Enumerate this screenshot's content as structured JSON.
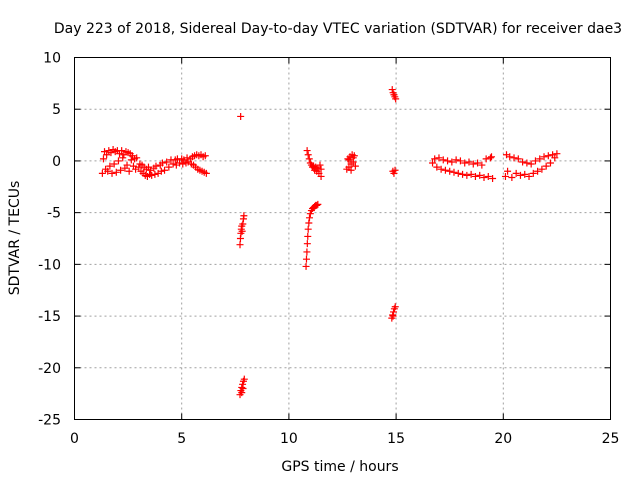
{
  "chart_data": {
    "type": "scatter",
    "title": "Day 223 of 2018, Sidereal Day-to-day VTEC variation (SDTVAR) for receiver dae3",
    "xlabel": "GPS time / hours",
    "ylabel": "SDTVAR / TECUs",
    "xlim": [
      0,
      25
    ],
    "ylim": [
      -25,
      10
    ],
    "xticks": [
      0,
      5,
      10,
      15,
      20,
      25
    ],
    "yticks": [
      10,
      5,
      0,
      -5,
      -10,
      -15,
      -20,
      -25
    ],
    "grid": true,
    "marker": "+",
    "color": "#ff0000",
    "series": [
      {
        "values": [
          [
            1.3,
            -1.2
          ],
          [
            1.35,
            0.2
          ],
          [
            1.4,
            0.9
          ],
          [
            1.45,
            -0.8
          ],
          [
            1.5,
            0.6
          ],
          [
            1.55,
            -1.0
          ],
          [
            1.6,
            1.0
          ],
          [
            1.65,
            -0.5
          ],
          [
            1.7,
            0.8
          ],
          [
            1.75,
            -1.2
          ],
          [
            1.8,
            1.1
          ],
          [
            1.85,
            -0.3
          ],
          [
            1.9,
            0.9
          ],
          [
            1.95,
            -1.1
          ],
          [
            2.0,
            1.0
          ],
          [
            2.05,
            0.0
          ],
          [
            2.1,
            0.7
          ],
          [
            2.15,
            -0.9
          ],
          [
            2.2,
            1.0
          ],
          [
            2.25,
            0.3
          ],
          [
            2.3,
            0.6
          ],
          [
            2.35,
            -0.7
          ],
          [
            2.4,
            0.9
          ],
          [
            2.45,
            -0.4
          ],
          [
            2.5,
            0.8
          ],
          [
            2.55,
            -1.0
          ],
          [
            2.6,
            0.7
          ],
          [
            2.65,
            0.1
          ],
          [
            2.7,
            0.5
          ],
          [
            2.75,
            -0.5
          ],
          [
            2.8,
            0.2
          ],
          [
            2.85,
            -0.8
          ],
          [
            2.9,
            0.3
          ],
          [
            3.0,
            -0.6
          ],
          [
            3.05,
            -0.3
          ],
          [
            3.1,
            -1.0
          ],
          [
            3.15,
            -0.4
          ],
          [
            3.2,
            -1.2
          ],
          [
            3.25,
            -0.6
          ],
          [
            3.3,
            -1.4
          ],
          [
            3.35,
            -0.8
          ],
          [
            3.4,
            -1.5
          ],
          [
            3.45,
            -0.6
          ],
          [
            3.5,
            -1.3
          ],
          [
            3.55,
            -0.9
          ],
          [
            3.6,
            -1.4
          ],
          [
            3.7,
            -0.7
          ],
          [
            3.75,
            -1.3
          ],
          [
            3.8,
            -0.5
          ],
          [
            3.9,
            -1.2
          ],
          [
            4.0,
            -0.4
          ],
          [
            4.05,
            -1.0
          ],
          [
            4.1,
            -0.2
          ],
          [
            4.2,
            -0.9
          ],
          [
            4.3,
            -0.1
          ],
          [
            4.4,
            -0.6
          ],
          [
            4.5,
            0.1
          ],
          [
            4.6,
            -0.3
          ],
          [
            4.7,
            0.1
          ],
          [
            4.75,
            -0.4
          ],
          [
            4.8,
            0.2
          ],
          [
            4.9,
            -0.2
          ],
          [
            5.0,
            0.2
          ],
          [
            5.05,
            -0.3
          ],
          [
            5.1,
            0.1
          ],
          [
            5.2,
            -0.2
          ],
          [
            5.25,
            0.3
          ],
          [
            5.3,
            -0.1
          ],
          [
            5.4,
            0.2
          ],
          [
            5.45,
            -0.3
          ],
          [
            5.5,
            0.4
          ],
          [
            5.55,
            -0.4
          ],
          [
            5.6,
            0.5
          ],
          [
            5.65,
            -0.6
          ],
          [
            5.7,
            0.6
          ],
          [
            5.75,
            -0.8
          ],
          [
            5.8,
            0.5
          ],
          [
            5.85,
            -0.9
          ],
          [
            5.9,
            0.6
          ],
          [
            5.95,
            -1.0
          ],
          [
            6.0,
            0.4
          ],
          [
            6.05,
            -1.1
          ],
          [
            6.1,
            0.5
          ],
          [
            6.15,
            -1.2
          ],
          [
            7.75,
            4.3
          ],
          [
            7.72,
            -8.1
          ],
          [
            7.74,
            -7.5
          ],
          [
            7.76,
            -7.0
          ],
          [
            7.78,
            -6.6
          ],
          [
            7.8,
            -6.3
          ],
          [
            7.82,
            -6.8
          ],
          [
            7.85,
            -6.1
          ],
          [
            7.88,
            -5.6
          ],
          [
            7.9,
            -5.3
          ],
          [
            7.72,
            -22.6
          ],
          [
            7.76,
            -22.2
          ],
          [
            7.8,
            -21.9
          ],
          [
            7.84,
            -21.6
          ],
          [
            7.88,
            -21.3
          ],
          [
            7.92,
            -21.1
          ],
          [
            7.8,
            -22.4
          ],
          [
            7.86,
            -22.0
          ],
          [
            10.8,
            -10.2
          ],
          [
            10.82,
            -9.5
          ],
          [
            10.84,
            -8.8
          ],
          [
            10.86,
            -8.0
          ],
          [
            10.88,
            -7.3
          ],
          [
            10.9,
            -6.6
          ],
          [
            10.93,
            -6.0
          ],
          [
            10.96,
            -5.5
          ],
          [
            11.0,
            -5.1
          ],
          [
            11.05,
            -4.8
          ],
          [
            11.1,
            -4.6
          ],
          [
            11.15,
            -4.5
          ],
          [
            11.2,
            -4.4
          ],
          [
            11.25,
            -4.3
          ],
          [
            11.3,
            -4.3
          ],
          [
            11.35,
            -4.2
          ],
          [
            10.85,
            1.0
          ],
          [
            10.9,
            0.6
          ],
          [
            10.95,
            0.2
          ],
          [
            11.0,
            -0.2
          ],
          [
            11.05,
            -0.4
          ],
          [
            11.1,
            -0.6
          ],
          [
            11.15,
            -0.5
          ],
          [
            11.2,
            -0.9
          ],
          [
            11.25,
            -0.6
          ],
          [
            11.3,
            -1.0
          ],
          [
            11.35,
            -0.7
          ],
          [
            11.4,
            -1.2
          ],
          [
            11.45,
            -0.4
          ],
          [
            11.5,
            -1.5
          ],
          [
            11.5,
            -0.8
          ],
          [
            12.7,
            -0.8
          ],
          [
            12.75,
            0.2
          ],
          [
            12.8,
            -0.6
          ],
          [
            12.85,
            0.4
          ],
          [
            12.9,
            -0.3
          ],
          [
            12.95,
            0.6
          ],
          [
            13.0,
            -0.1
          ],
          [
            13.05,
            0.5
          ],
          [
            13.1,
            -0.5
          ],
          [
            12.8,
            0.1
          ],
          [
            12.9,
            -0.9
          ],
          [
            13.0,
            0.3
          ],
          [
            14.82,
            6.9
          ],
          [
            14.86,
            6.6
          ],
          [
            14.9,
            6.4
          ],
          [
            14.94,
            6.2
          ],
          [
            14.98,
            6.0
          ],
          [
            14.85,
            -1.0
          ],
          [
            14.9,
            -1.2
          ],
          [
            14.95,
            -0.9
          ],
          [
            14.8,
            -15.2
          ],
          [
            14.84,
            -14.9
          ],
          [
            14.88,
            -14.6
          ],
          [
            14.92,
            -14.3
          ],
          [
            14.96,
            -14.1
          ],
          [
            14.86,
            -15.0
          ],
          [
            16.7,
            -0.2
          ],
          [
            16.8,
            0.2
          ],
          [
            16.9,
            -0.6
          ],
          [
            17.0,
            0.3
          ],
          [
            17.1,
            -0.8
          ],
          [
            17.2,
            0.1
          ],
          [
            17.3,
            -0.9
          ],
          [
            17.4,
            0.0
          ],
          [
            17.5,
            -1.0
          ],
          [
            17.6,
            -0.1
          ],
          [
            17.7,
            -1.1
          ],
          [
            17.8,
            0.1
          ],
          [
            17.9,
            -1.2
          ],
          [
            18.0,
            0.0
          ],
          [
            18.1,
            -1.3
          ],
          [
            18.2,
            -0.2
          ],
          [
            18.3,
            -1.4
          ],
          [
            18.4,
            -0.1
          ],
          [
            18.5,
            -1.3
          ],
          [
            18.6,
            -0.3
          ],
          [
            18.7,
            -1.5
          ],
          [
            18.8,
            -0.2
          ],
          [
            18.9,
            -1.4
          ],
          [
            19.0,
            -0.4
          ],
          [
            19.1,
            -1.6
          ],
          [
            19.2,
            0.2
          ],
          [
            19.3,
            -1.5
          ],
          [
            19.4,
            0.3
          ],
          [
            19.5,
            -1.7
          ],
          [
            19.45,
            0.4
          ],
          [
            20.1,
            -1.5
          ],
          [
            20.15,
            0.6
          ],
          [
            20.2,
            -1.0
          ],
          [
            20.3,
            0.4
          ],
          [
            20.4,
            -1.6
          ],
          [
            20.5,
            0.3
          ],
          [
            20.6,
            -1.2
          ],
          [
            20.7,
            0.2
          ],
          [
            20.8,
            -1.4
          ],
          [
            20.9,
            -0.1
          ],
          [
            21.0,
            -1.3
          ],
          [
            21.1,
            -0.2
          ],
          [
            21.2,
            -1.5
          ],
          [
            21.3,
            -0.3
          ],
          [
            21.4,
            -1.2
          ],
          [
            21.5,
            0.0
          ],
          [
            21.6,
            -1.0
          ],
          [
            21.7,
            0.2
          ],
          [
            21.8,
            -0.8
          ],
          [
            21.9,
            0.4
          ],
          [
            22.0,
            -0.5
          ],
          [
            22.1,
            0.5
          ],
          [
            22.2,
            -0.2
          ],
          [
            22.3,
            0.6
          ],
          [
            22.4,
            0.3
          ],
          [
            22.5,
            0.7
          ]
        ]
      }
    ]
  }
}
